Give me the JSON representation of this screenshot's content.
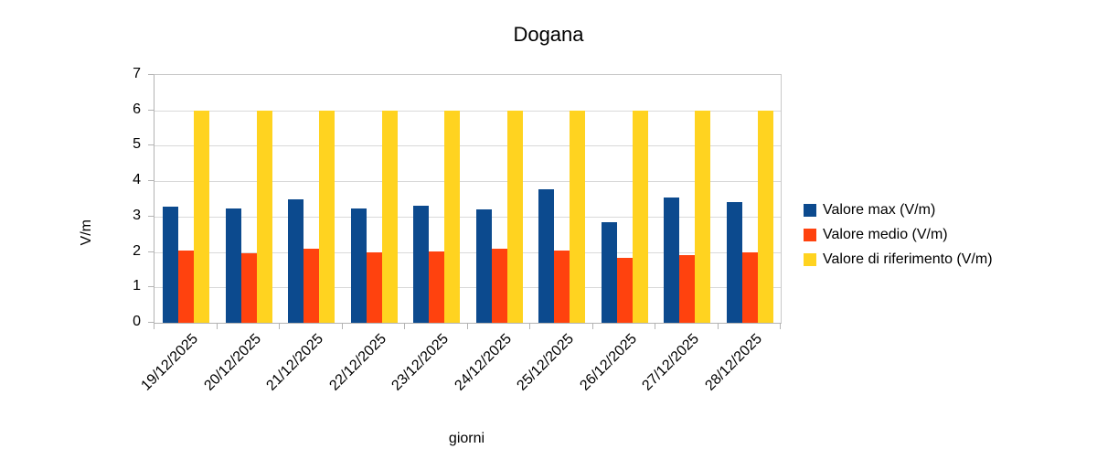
{
  "chart_data": {
    "type": "bar",
    "title": "Dogana",
    "xlabel": "giorni",
    "ylabel": "V/m",
    "categories": [
      "19/12/2025",
      "20/12/2025",
      "21/12/2025",
      "22/12/2025",
      "23/12/2025",
      "24/12/2025",
      "25/12/2025",
      "26/12/2025",
      "27/12/2025",
      "28/12/2025"
    ],
    "series": [
      {
        "key": "valore-max",
        "name": "Valore max (V/m)",
        "color": "#0c4a8e",
        "values": [
          3.28,
          3.24,
          3.5,
          3.22,
          3.3,
          3.2,
          3.78,
          2.84,
          3.54,
          3.41
        ]
      },
      {
        "key": "valore-medio",
        "name": "Valore medio (V/m)",
        "color": "#ff420e",
        "values": [
          2.03,
          1.96,
          2.08,
          1.98,
          2.02,
          2.09,
          2.05,
          1.83,
          1.91,
          2.0
        ]
      },
      {
        "key": "valore-riferimento",
        "name": "Valore di riferimento (V/m)",
        "color": "#ffd320",
        "values": [
          6,
          6,
          6,
          6,
          6,
          6,
          6,
          6,
          6,
          6
        ]
      }
    ],
    "ylim": [
      0,
      7
    ],
    "yticks": [
      0,
      1,
      2,
      3,
      4,
      5,
      6,
      7
    ],
    "grid": "horizontal",
    "legend_position": "right",
    "colors": {
      "gridline": "#d9d9d9",
      "axis": "#b3b3b3",
      "text": "#000000",
      "background": "#ffffff"
    }
  }
}
